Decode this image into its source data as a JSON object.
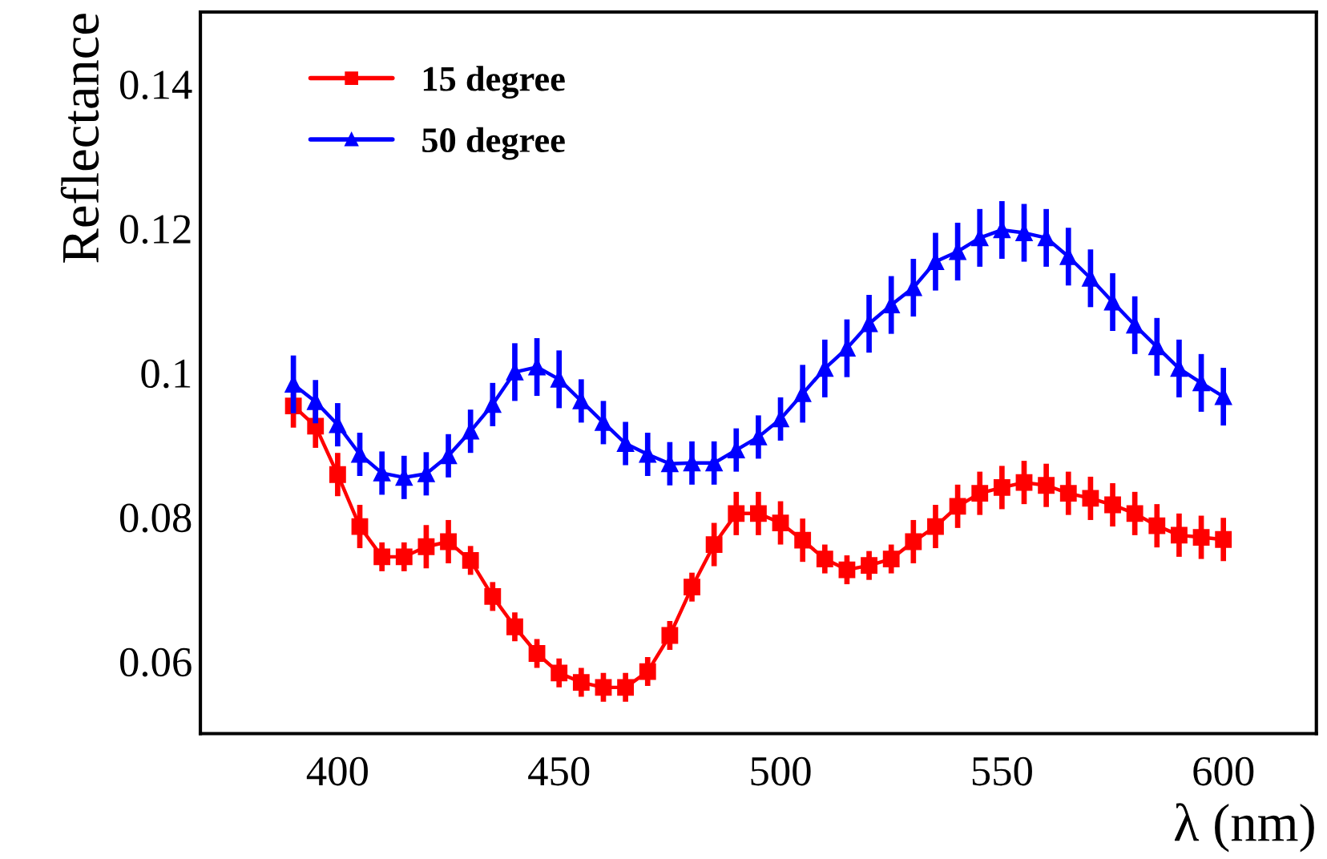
{
  "chart_data": {
    "type": "line",
    "xlabel": "λ (nm)",
    "ylabel": "Reflectance",
    "x": [
      390,
      395,
      400,
      405,
      410,
      415,
      420,
      425,
      430,
      435,
      440,
      445,
      450,
      455,
      460,
      465,
      470,
      475,
      480,
      485,
      490,
      495,
      500,
      505,
      510,
      515,
      520,
      525,
      530,
      535,
      540,
      545,
      550,
      555,
      560,
      565,
      570,
      575,
      580,
      585,
      590,
      595,
      600
    ],
    "series": [
      {
        "name": "15 degree",
        "color": "#ff0000",
        "marker": "square",
        "values": [
          0.0954,
          0.0926,
          0.0859,
          0.0787,
          0.0745,
          0.0745,
          0.0759,
          0.0766,
          0.074,
          0.069,
          0.0648,
          0.0611,
          0.0584,
          0.0571,
          0.0564,
          0.0564,
          0.0586,
          0.0636,
          0.0703,
          0.0762,
          0.0805,
          0.0805,
          0.0792,
          0.0768,
          0.0742,
          0.0727,
          0.0733,
          0.0742,
          0.0766,
          0.0787,
          0.0815,
          0.0833,
          0.0841,
          0.0848,
          0.0844,
          0.0833,
          0.0826,
          0.0817,
          0.0805,
          0.0788,
          0.0775,
          0.0772,
          0.0769
        ],
        "errors": [
          0.003,
          0.003,
          0.003,
          0.003,
          0.002,
          0.002,
          0.003,
          0.003,
          0.002,
          0.002,
          0.002,
          0.002,
          0.002,
          0.002,
          0.002,
          0.002,
          0.002,
          0.002,
          0.002,
          0.003,
          0.003,
          0.003,
          0.003,
          0.003,
          0.002,
          0.002,
          0.002,
          0.002,
          0.003,
          0.003,
          0.003,
          0.003,
          0.003,
          0.003,
          0.003,
          0.003,
          0.003,
          0.003,
          0.003,
          0.003,
          0.003,
          0.003,
          0.003
        ]
      },
      {
        "name": "50 degree",
        "color": "#0000ff",
        "marker": "triangle",
        "values": [
          0.0984,
          0.096,
          0.0928,
          0.0887,
          0.0861,
          0.0855,
          0.086,
          0.0885,
          0.0919,
          0.0956,
          0.1001,
          0.1008,
          0.0991,
          0.0961,
          0.0931,
          0.0902,
          0.0887,
          0.0874,
          0.0875,
          0.0875,
          0.0893,
          0.0911,
          0.0936,
          0.0971,
          0.1006,
          0.1034,
          0.1068,
          0.1094,
          0.1118,
          0.1154,
          0.1168,
          0.1187,
          0.1198,
          0.1194,
          0.1187,
          0.1161,
          0.1131,
          0.1098,
          0.1066,
          0.1036,
          0.1006,
          0.0986,
          0.0967
        ],
        "errors": [
          0.004,
          0.003,
          0.003,
          0.003,
          0.003,
          0.003,
          0.003,
          0.003,
          0.003,
          0.003,
          0.004,
          0.004,
          0.004,
          0.003,
          0.003,
          0.003,
          0.003,
          0.003,
          0.003,
          0.003,
          0.003,
          0.003,
          0.003,
          0.004,
          0.004,
          0.004,
          0.004,
          0.004,
          0.004,
          0.004,
          0.004,
          0.004,
          0.004,
          0.004,
          0.004,
          0.004,
          0.004,
          0.004,
          0.004,
          0.004,
          0.004,
          0.004,
          0.004
        ]
      }
    ],
    "xlim": [
      369,
      621
    ],
    "xticks": [
      400,
      450,
      500,
      550,
      600
    ],
    "ylim": [
      0.05,
      0.15
    ],
    "yticks": [
      0.06,
      0.08,
      0.1,
      0.12,
      0.14
    ],
    "legend": "top left",
    "grid": false,
    "line_style": "solid"
  }
}
